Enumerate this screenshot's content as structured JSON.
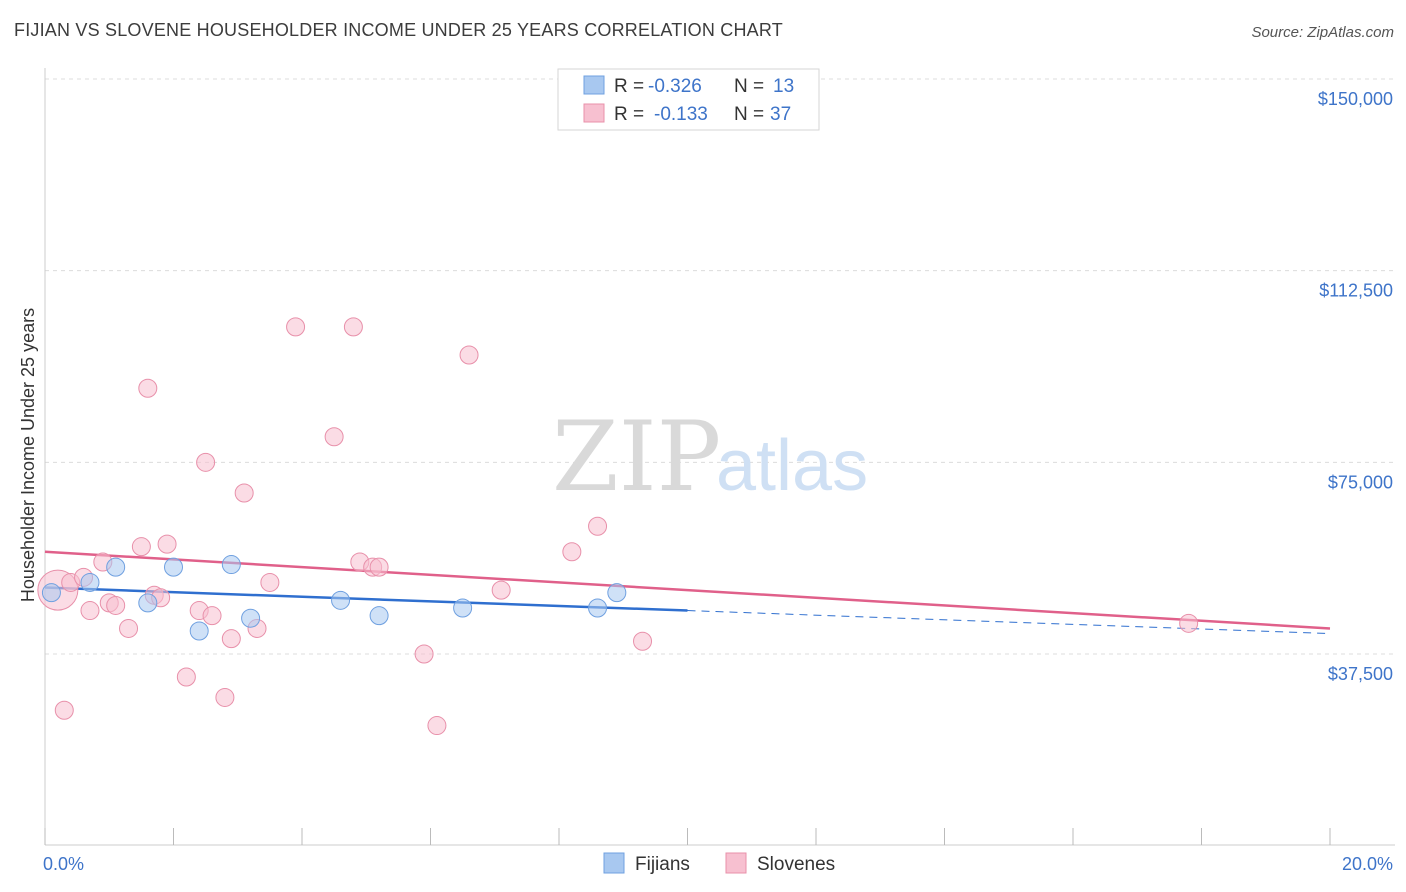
{
  "header": {
    "title": "FIJIAN VS SLOVENE HOUSEHOLDER INCOME UNDER 25 YEARS CORRELATION CHART",
    "source": "Source: ZipAtlas.com"
  },
  "watermark": {
    "zip": "ZIP",
    "atlas": "atlas"
  },
  "stats_box": {
    "rows": [
      {
        "r_label": "R =",
        "r_value": "-0.326",
        "n_label": "N =",
        "n_value": "13",
        "color": "#a8c8f0",
        "stroke": "#6fa0e0"
      },
      {
        "r_label": "R =",
        "r_value": "-0.133",
        "n_label": "N =",
        "n_value": "37",
        "color": "#f7c0d0",
        "stroke": "#e890aa"
      }
    ]
  },
  "chart_data": {
    "type": "scatter",
    "title": "FIJIAN VS SLOVENE HOUSEHOLDER INCOME UNDER 25 YEARS CORRELATION CHART",
    "xlabel": "",
    "ylabel": "Householder Income Under 25 years",
    "xlim": [
      0,
      20
    ],
    "ylim": [
      0,
      150000
    ],
    "x_tick_labels": [
      "0.0%",
      "20.0%"
    ],
    "y_ticks": [
      37500,
      75000,
      112500,
      150000
    ],
    "y_tick_labels": [
      "$37,500",
      "$75,000",
      "$112,500",
      "$150,000"
    ],
    "grid": true,
    "legend_position": "bottom-center",
    "series": [
      {
        "name": "Fijians",
        "color": "#a8c8f0",
        "stroke": "#6fa0e0",
        "line_color": "#2f6fcf",
        "x": [
          0.1,
          0.7,
          1.1,
          1.6,
          2.0,
          2.4,
          2.9,
          3.2,
          4.6,
          5.2,
          6.5,
          8.6,
          8.9
        ],
        "y": [
          49500,
          51500,
          54500,
          47500,
          54500,
          42000,
          55000,
          44500,
          48000,
          45000,
          46500,
          46500,
          49500
        ],
        "trend": {
          "x0": 0,
          "y0": 50500,
          "x1": 10,
          "y1": 46000,
          "dash_x1": 20,
          "dash_y1": 41500
        }
      },
      {
        "name": "Slovenes",
        "color": "#f7c0d0",
        "stroke": "#e890aa",
        "line_color": "#e0608a",
        "x": [
          0.2,
          0.4,
          0.6,
          0.7,
          0.9,
          1.0,
          1.1,
          1.3,
          1.5,
          1.6,
          1.7,
          1.8,
          1.9,
          2.2,
          2.4,
          2.5,
          2.6,
          2.8,
          2.9,
          3.1,
          3.3,
          3.5,
          3.9,
          4.5,
          4.8,
          4.9,
          5.1,
          5.2,
          5.9,
          6.1,
          6.6,
          7.1,
          8.2,
          8.6,
          9.3,
          17.8,
          0.3
        ],
        "y": [
          50000,
          51500,
          52500,
          46000,
          55500,
          47500,
          47000,
          42500,
          58500,
          89500,
          49000,
          48500,
          59000,
          33000,
          46000,
          75000,
          45000,
          29000,
          40500,
          69000,
          42500,
          51500,
          101500,
          80000,
          101500,
          55500,
          54500,
          54500,
          37500,
          23500,
          96000,
          50000,
          57500,
          62500,
          40000,
          43500,
          26500
        ]
      }
    ],
    "slovene_trend": {
      "x0": 0,
      "y0": 57500,
      "x1": 20,
      "y1": 42500
    }
  },
  "legend": {
    "items": [
      {
        "label": "Fijians",
        "color": "#a8c8f0",
        "stroke": "#6fa0e0"
      },
      {
        "label": "Slovenes",
        "color": "#f7c0d0",
        "stroke": "#e890aa"
      }
    ]
  }
}
